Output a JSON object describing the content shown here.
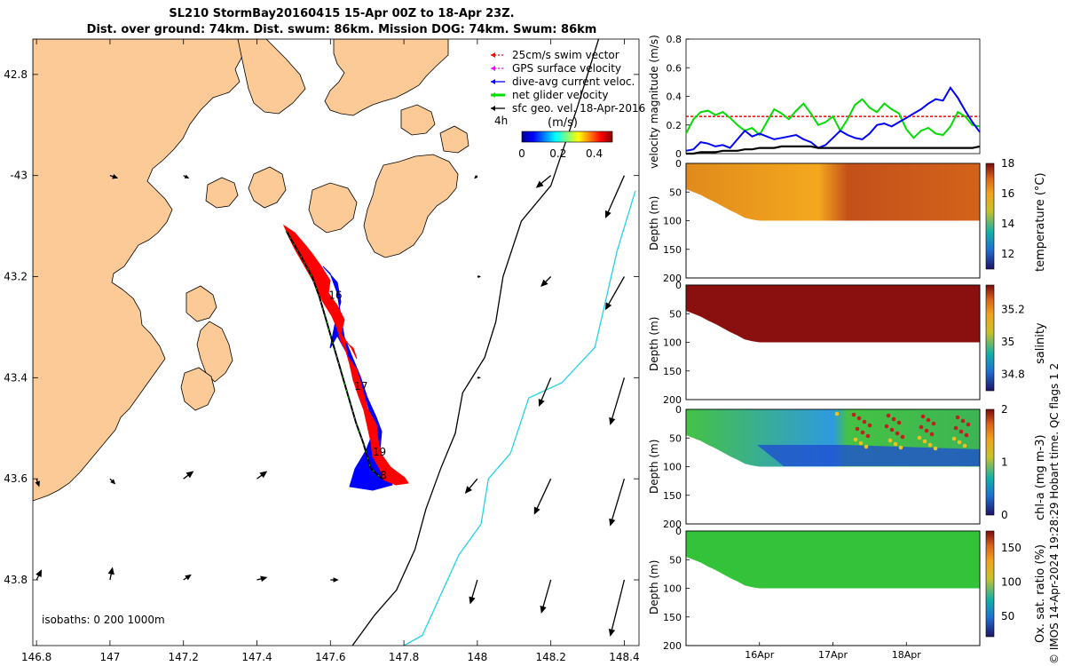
{
  "figure": {
    "title_line1": "SL210 StormBay20160415 15-Apr 00Z to 18-Apr 23Z.",
    "title_line2": "Dist. over ground: 74km. Dist. swum: 86km. Mission DOG: 74km. Swum: 86km",
    "credit": "© IMOS 14-Apr-2024 19:28:29 Hobart time. QC flags 1  2"
  },
  "colors": {
    "land": "#fbca96",
    "sea": "#ffffff",
    "swim": "#ff0000",
    "gps": "#ff00ff",
    "current": "#0000ff",
    "net": "#00dd00",
    "geo": "#000000",
    "iso_200": "#000000",
    "iso_1000": "#22d3e6"
  },
  "chart_data": [
    {
      "type": "map",
      "x_tick_labels": [
        "146.8",
        "147",
        "147.2",
        "147.4",
        "147.6",
        "147.8",
        "148",
        "148.2",
        "148.4"
      ],
      "x_ticks": [
        146.8,
        147.0,
        147.2,
        147.4,
        147.6,
        147.8,
        148.0,
        148.2,
        148.4
      ],
      "y_tick_labels": [
        "42.8",
        "-43",
        "43.2",
        "43.4",
        "43.6",
        "43.8"
      ],
      "y_ticks": [
        -42.8,
        -43.0,
        -43.2,
        -43.4,
        -43.6,
        -43.8
      ],
      "xlim": [
        146.79,
        148.44
      ],
      "ylim": [
        -43.93,
        -42.73
      ],
      "legend": {
        "position": "top-right",
        "items": [
          {
            "key": "swim",
            "label": "25cm/s swim vector"
          },
          {
            "key": "gps",
            "label": "GPS surface velocity"
          },
          {
            "key": "current",
            "label": "dive-avg current veloc."
          },
          {
            "key": "net",
            "label": "net glider velocity"
          },
          {
            "key": "geo",
            "label": "sfc geo. vel. 18-Apr-2016"
          }
        ]
      },
      "time_marker_label": "4h",
      "colorbar": {
        "title": "(m/s)",
        "ticks": [
          0,
          0.2,
          0.4
        ],
        "tick_labels": [
          "0",
          "0.2",
          "0.4"
        ],
        "range": [
          0,
          0.5
        ]
      },
      "isobath_label": "isobaths: 0   200  1000m",
      "track": [
        [
          147.48,
          -43.11
        ],
        [
          147.52,
          -43.16
        ],
        [
          147.55,
          -43.2
        ],
        [
          147.57,
          -43.24
        ],
        [
          147.59,
          -43.29
        ],
        [
          147.61,
          -43.34
        ],
        [
          147.63,
          -43.39
        ],
        [
          147.65,
          -43.44
        ],
        [
          147.67,
          -43.49
        ],
        [
          147.69,
          -43.53
        ],
        [
          147.71,
          -43.58
        ],
        [
          147.74,
          -43.6
        ]
      ],
      "day_labels": [
        {
          "text": "16",
          "lon": 147.595,
          "lat": -43.235
        },
        {
          "text": "17",
          "lon": 147.665,
          "lat": -43.415
        },
        {
          "text": "19",
          "lon": 147.715,
          "lat": -43.545
        },
        {
          "text": "8",
          "lon": 147.735,
          "lat": -43.592
        }
      ],
      "geo_vectors": [
        {
          "lon": 147.0,
          "lat": -43.0,
          "u": 0.03,
          "v": -0.01
        },
        {
          "lon": 147.2,
          "lat": -43.0,
          "u": 0.02,
          "v": -0.01
        },
        {
          "lon": 148.0,
          "lat": -43.0,
          "u": -0.01,
          "v": -0.01
        },
        {
          "lon": 148.2,
          "lat": -43.0,
          "u": -0.06,
          "v": -0.05
        },
        {
          "lon": 148.4,
          "lat": -43.0,
          "u": -0.08,
          "v": -0.18
        },
        {
          "lon": 148.0,
          "lat": -43.2,
          "u": 0.01,
          "v": 0.0
        },
        {
          "lon": 148.2,
          "lat": -43.2,
          "u": -0.04,
          "v": -0.04
        },
        {
          "lon": 148.4,
          "lat": -43.2,
          "u": -0.08,
          "v": -0.14
        },
        {
          "lon": 148.0,
          "lat": -43.4,
          "u": 0.01,
          "v": 0.0
        },
        {
          "lon": 148.2,
          "lat": -43.4,
          "u": -0.05,
          "v": -0.12
        },
        {
          "lon": 148.4,
          "lat": -43.4,
          "u": -0.06,
          "v": -0.2
        },
        {
          "lon": 146.8,
          "lat": -43.6,
          "u": 0.01,
          "v": -0.03
        },
        {
          "lon": 147.0,
          "lat": -43.6,
          "u": 0.02,
          "v": -0.02
        },
        {
          "lon": 147.2,
          "lat": -43.6,
          "u": 0.04,
          "v": 0.03
        },
        {
          "lon": 147.4,
          "lat": -43.6,
          "u": 0.04,
          "v": 0.03
        },
        {
          "lon": 148.0,
          "lat": -43.6,
          "u": -0.05,
          "v": -0.06
        },
        {
          "lon": 148.2,
          "lat": -43.6,
          "u": -0.07,
          "v": -0.15
        },
        {
          "lon": 148.4,
          "lat": -43.6,
          "u": -0.06,
          "v": -0.2
        },
        {
          "lon": 146.8,
          "lat": -43.8,
          "u": 0.02,
          "v": 0.04
        },
        {
          "lon": 147.0,
          "lat": -43.8,
          "u": 0.01,
          "v": 0.05
        },
        {
          "lon": 147.2,
          "lat": -43.8,
          "u": 0.03,
          "v": 0.02
        },
        {
          "lon": 147.4,
          "lat": -43.8,
          "u": 0.04,
          "v": 0.01
        },
        {
          "lon": 147.6,
          "lat": -43.8,
          "u": 0.03,
          "v": 0.0
        },
        {
          "lon": 147.8,
          "lat": -43.8,
          "u": 0.0,
          "v": 0.0
        },
        {
          "lon": 148.0,
          "lat": -43.8,
          "u": -0.03,
          "v": -0.1
        },
        {
          "lon": 148.2,
          "lat": -43.8,
          "u": -0.04,
          "v": -0.14
        },
        {
          "lon": 148.4,
          "lat": -43.8,
          "u": -0.06,
          "v": -0.24
        }
      ],
      "iso200": [
        [
          148.33,
          -42.73
        ],
        [
          148.27,
          -42.87
        ],
        [
          148.2,
          -43.02
        ],
        [
          148.12,
          -43.09
        ],
        [
          148.07,
          -43.2
        ],
        [
          148.05,
          -43.29
        ],
        [
          148.02,
          -43.36
        ],
        [
          147.96,
          -43.43
        ],
        [
          147.94,
          -43.51
        ],
        [
          147.9,
          -43.58
        ],
        [
          147.86,
          -43.66
        ],
        [
          147.83,
          -43.74
        ],
        [
          147.78,
          -43.82
        ],
        [
          147.72,
          -43.87
        ],
        [
          147.66,
          -43.93
        ]
      ],
      "iso1000": [
        [
          148.43,
          -43.03
        ],
        [
          148.38,
          -43.15
        ],
        [
          148.32,
          -43.34
        ],
        [
          148.23,
          -43.41
        ],
        [
          148.14,
          -43.44
        ],
        [
          148.09,
          -43.55
        ],
        [
          148.03,
          -43.6
        ],
        [
          148.01,
          -43.69
        ],
        [
          147.95,
          -43.75
        ],
        [
          147.9,
          -43.83
        ],
        [
          147.85,
          -43.91
        ],
        [
          147.8,
          -43.93
        ]
      ]
    },
    {
      "type": "line",
      "ylabel": "velocity magnitude (m/s)",
      "ylim": [
        0,
        0.8
      ],
      "y_ticks": [
        0,
        0.2,
        0.4,
        0.6,
        0.8
      ],
      "y_tick_labels": [
        "0",
        "0.2",
        "0.4",
        "0.6",
        "0.8"
      ],
      "x": [
        0,
        0.1,
        0.2,
        0.3,
        0.4,
        0.5,
        0.6,
        0.7,
        0.8,
        0.9,
        1.0,
        1.1,
        1.2,
        1.3,
        1.4,
        1.5,
        1.6,
        1.7,
        1.8,
        1.9,
        2.0,
        2.1,
        2.2,
        2.3,
        2.4,
        2.5,
        2.6,
        2.7,
        2.8,
        2.9,
        3.0,
        3.1,
        3.2,
        3.3,
        3.4,
        3.5,
        3.6,
        3.7,
        3.8,
        3.9,
        4.0
      ],
      "series": [
        {
          "key": "swim",
          "style": "dashed",
          "values": [
            0.26,
            0.26,
            0.26,
            0.26,
            0.26,
            0.26,
            0.26,
            0.26,
            0.26,
            0.26,
            0.26,
            0.26,
            0.26,
            0.26,
            0.26,
            0.26,
            0.26,
            0.26,
            0.26,
            0.26,
            0.26,
            0.26,
            0.26,
            0.26,
            0.26,
            0.26,
            0.26,
            0.26,
            0.26,
            0.26,
            0.26,
            0.26,
            0.26,
            0.26,
            0.26,
            0.26,
            0.26,
            0.26,
            0.26,
            0.26,
            0.26
          ]
        },
        {
          "key": "net",
          "values": [
            0.14,
            0.24,
            0.29,
            0.3,
            0.27,
            0.29,
            0.25,
            0.2,
            0.16,
            0.18,
            0.13,
            0.22,
            0.31,
            0.28,
            0.24,
            0.3,
            0.35,
            0.28,
            0.2,
            0.22,
            0.26,
            0.16,
            0.24,
            0.34,
            0.38,
            0.32,
            0.29,
            0.35,
            0.31,
            0.28,
            0.17,
            0.11,
            0.16,
            0.18,
            0.14,
            0.13,
            0.19,
            0.29,
            0.26,
            0.2,
            0.19
          ]
        },
        {
          "key": "current",
          "values": [
            0.02,
            0.03,
            0.08,
            0.07,
            0.05,
            0.06,
            0.04,
            0.1,
            0.16,
            0.12,
            0.14,
            0.12,
            0.1,
            0.11,
            0.12,
            0.13,
            0.1,
            0.08,
            0.04,
            0.06,
            0.11,
            0.16,
            0.13,
            0.11,
            0.1,
            0.14,
            0.2,
            0.21,
            0.19,
            0.22,
            0.25,
            0.28,
            0.31,
            0.35,
            0.38,
            0.37,
            0.46,
            0.39,
            0.3,
            0.22,
            0.15
          ]
        },
        {
          "key": "geo",
          "values": [
            0.0,
            0.0,
            0.01,
            0.01,
            0.01,
            0.02,
            0.02,
            0.02,
            0.03,
            0.03,
            0.04,
            0.04,
            0.04,
            0.05,
            0.05,
            0.05,
            0.05,
            0.05,
            0.04,
            0.04,
            0.04,
            0.04,
            0.04,
            0.04,
            0.04,
            0.04,
            0.04,
            0.04,
            0.04,
            0.04,
            0.04,
            0.04,
            0.04,
            0.04,
            0.04,
            0.04,
            0.04,
            0.04,
            0.04,
            0.04,
            0.05
          ]
        }
      ]
    },
    {
      "type": "heatmap",
      "variable": "temperature",
      "ylabel": "Depth (m)",
      "colorbar_label": "temperature (°C)",
      "clim": [
        11,
        18
      ],
      "colorbar_ticks": [
        12,
        14,
        16,
        18
      ],
      "colorbar_tick_labels": [
        "12",
        "14",
        "16",
        "18"
      ],
      "ylim": [
        200,
        0
      ],
      "y_ticks": [
        0,
        50,
        100,
        150,
        200
      ],
      "y_tick_labels": [
        "0",
        "50",
        "100",
        "150",
        "200"
      ],
      "max_depth_m": [
        45,
        50,
        55,
        62,
        68,
        75,
        82,
        88,
        95,
        98,
        100,
        100,
        100,
        100,
        100,
        100,
        100,
        100,
        100,
        100,
        100,
        100,
        100,
        100,
        100,
        100,
        100,
        100,
        100,
        100,
        100,
        100,
        100,
        100,
        100,
        100,
        100,
        100,
        100,
        100,
        100
      ]
    },
    {
      "type": "heatmap",
      "variable": "salinity",
      "ylabel": "Depth (m)",
      "colorbar_label": "salinity",
      "clim": [
        34.7,
        35.35
      ],
      "colorbar_ticks": [
        34.8,
        35.0,
        35.2
      ],
      "colorbar_tick_labels": [
        "34.8",
        "35",
        "35.2"
      ],
      "ylim": [
        200,
        0
      ],
      "y_ticks": [
        0,
        50,
        100,
        150,
        200
      ],
      "y_tick_labels": [
        "0",
        "50",
        "100",
        "150",
        "200"
      ]
    },
    {
      "type": "heatmap",
      "variable": "chl-a",
      "ylabel": "Depth (m)",
      "colorbar_label": "chl-a (mg m-3)",
      "clim": [
        0,
        2
      ],
      "colorbar_ticks": [
        0,
        1,
        2
      ],
      "colorbar_tick_labels": [
        "0",
        "1",
        "2"
      ],
      "ylim": [
        200,
        0
      ],
      "y_ticks": [
        0,
        50,
        100,
        150,
        200
      ],
      "y_tick_labels": [
        "0",
        "50",
        "100",
        "150",
        "200"
      ]
    },
    {
      "type": "heatmap",
      "variable": "oxygen saturation",
      "ylabel": "Depth (m)",
      "colorbar_label": "Ox. sat. ratio (%)",
      "clim": [
        20,
        175
      ],
      "colorbar_ticks": [
        50,
        100,
        150
      ],
      "colorbar_tick_labels": [
        "50",
        "100",
        "150"
      ],
      "ylim": [
        200,
        0
      ],
      "y_ticks": [
        0,
        50,
        100,
        150,
        200
      ],
      "y_tick_labels": [
        "0",
        "50",
        "100",
        "150",
        "200"
      ],
      "x_ticks": [
        1,
        2,
        3
      ],
      "x_tick_labels": [
        "16Apr",
        "17Apr",
        "18Apr"
      ]
    }
  ]
}
